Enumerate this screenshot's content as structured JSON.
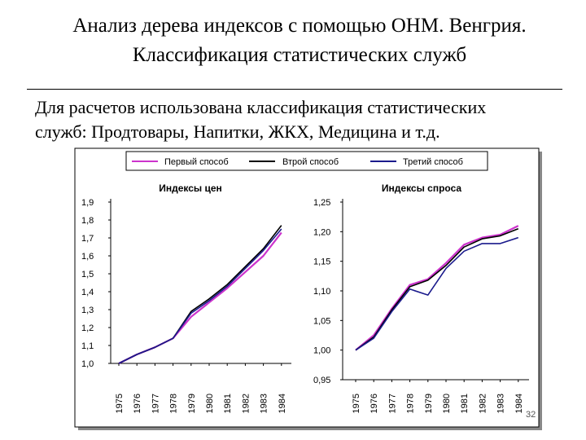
{
  "slide": {
    "title_line1": "Анализ дерева индексов с помощью ОНМ. Венгрия.",
    "title_line2": "Классификация статистических служб",
    "body_line1": "Для расчетов использована классификация статистических",
    "body_line2": "служб: Продтовары, Напитки, ЖКХ, Медицина и т.д.",
    "page_number": "32"
  },
  "legend": [
    {
      "name": "Первый способ",
      "color": "#cc33cc"
    },
    {
      "name": "Втрой способ",
      "color": "#000000"
    },
    {
      "name": "Третий способ",
      "color": "#1a1a8c"
    }
  ],
  "chart_data": [
    {
      "type": "line",
      "title": "Индексы цен",
      "x": [
        "1975",
        "1976",
        "1977",
        "1978",
        "1979",
        "1980",
        "1981",
        "1982",
        "1983",
        "1984"
      ],
      "ylim": [
        1.0,
        1.9
      ],
      "yticks": [
        "1,9",
        "1,8",
        "1,7",
        "1,6",
        "1,5",
        "1,4",
        "1,3",
        "1,2",
        "1,1",
        "1,0"
      ],
      "grid": false,
      "series": [
        {
          "name": "Первый способ",
          "color": "#cc33cc",
          "values": [
            1.0,
            1.05,
            1.09,
            1.14,
            1.26,
            1.34,
            1.42,
            1.51,
            1.6,
            1.73
          ]
        },
        {
          "name": "Втрой способ",
          "color": "#000000",
          "values": [
            1.0,
            1.05,
            1.09,
            1.14,
            1.29,
            1.36,
            1.44,
            1.54,
            1.64,
            1.77
          ]
        },
        {
          "name": "Третий способ",
          "color": "#1a1a8c",
          "values": [
            1.0,
            1.05,
            1.09,
            1.14,
            1.28,
            1.35,
            1.43,
            1.53,
            1.63,
            1.75
          ]
        }
      ]
    },
    {
      "type": "line",
      "title": "Индексы спроса",
      "x": [
        "1975",
        "1976",
        "1977",
        "1978",
        "1979",
        "1980",
        "1981",
        "1982",
        "1983",
        "1984"
      ],
      "ylim": [
        0.95,
        1.25
      ],
      "yticks": [
        "1,25",
        "1,20",
        "1,15",
        "1,10",
        "1,05",
        "1,00",
        "0,95"
      ],
      "grid": false,
      "series": [
        {
          "name": "Первый способ",
          "color": "#cc33cc",
          "values": [
            1.0,
            1.025,
            1.07,
            1.11,
            1.12,
            1.147,
            1.178,
            1.19,
            1.195,
            1.21
          ]
        },
        {
          "name": "Втрой способ",
          "color": "#000000",
          "values": [
            1.0,
            1.022,
            1.068,
            1.107,
            1.118,
            1.143,
            1.174,
            1.188,
            1.193,
            1.205
          ]
        },
        {
          "name": "Третий способ",
          "color": "#1a1a8c",
          "values": [
            1.0,
            1.02,
            1.065,
            1.103,
            1.093,
            1.138,
            1.167,
            1.18,
            1.18,
            1.19
          ]
        }
      ]
    }
  ]
}
